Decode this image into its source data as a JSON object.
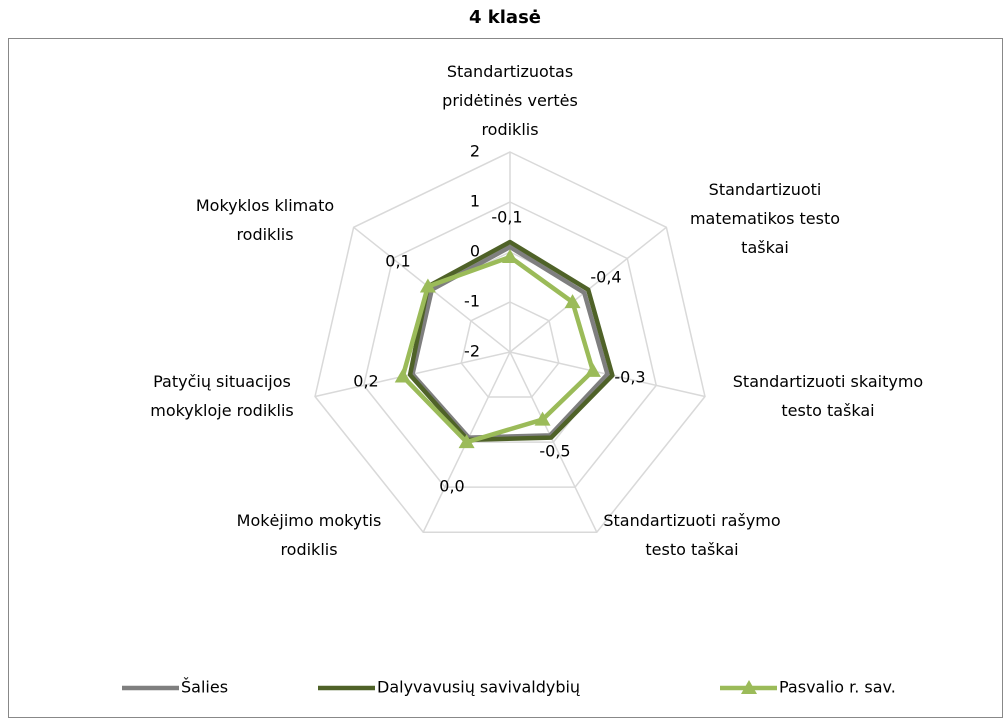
{
  "chart_data": {
    "type": "radar",
    "title": "4 klasė",
    "categories": [
      "Standartizuotas\npridėtinės vertės\nrodiklis",
      "Standartizuoti\nmatematikos testo\ntaškai",
      "Standartizuoti skaitymo\ntesto taškai",
      "Standartizuoti rašymo\ntesto taškai",
      "Mokėjimo mokytis\nrodiklis",
      "Patyčių situacijos\nmokykloje rodiklis",
      "Mokyklos klimato\nrodiklis"
    ],
    "series": [
      {
        "name": "Šalies",
        "color": "#7f7f7f",
        "values": [
          0.1,
          -0.1,
          0.0,
          -0.15,
          -0.1,
          0.0,
          0.0
        ]
      },
      {
        "name": "Dalyvavusių savivaldybių",
        "color": "#4f6228",
        "values": [
          0.2,
          0.0,
          0.1,
          -0.1,
          -0.05,
          0.05,
          0.1
        ]
      },
      {
        "name": "Pasvalio r. sav.",
        "color": "#9bbb59",
        "marker": "triangle",
        "values": [
          -0.1,
          -0.4,
          -0.3,
          -0.5,
          0.0,
          0.2,
          0.1
        ],
        "value_labels": [
          "-0,1",
          "-0,4",
          "-0,3",
          "-0,5",
          "0,0",
          "0,2",
          "0,1"
        ]
      }
    ],
    "ylim": [
      -2,
      2
    ],
    "yticks": [
      -2,
      -1,
      0,
      1,
      2
    ],
    "grid": true,
    "legend": "bottom"
  }
}
